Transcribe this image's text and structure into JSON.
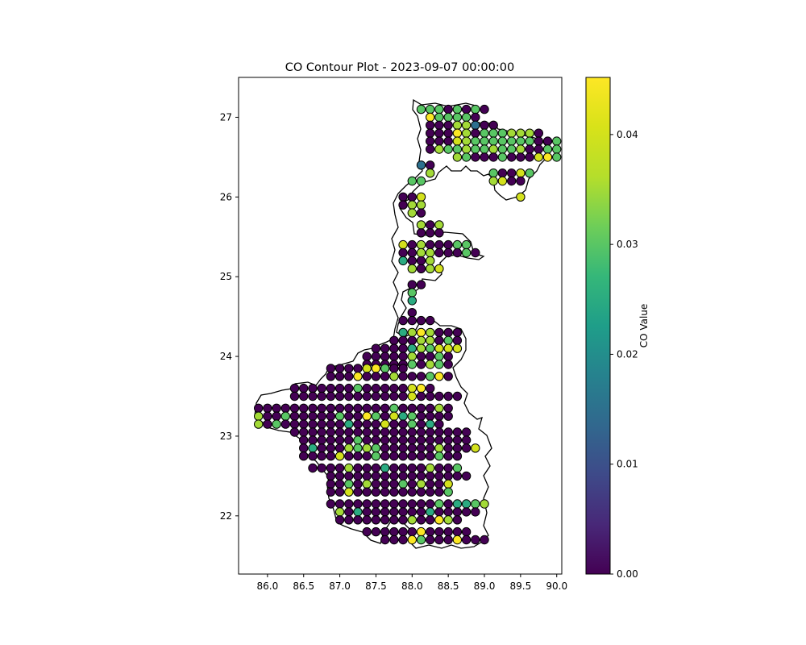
{
  "chart_data": {
    "type": "scatter",
    "title": "CO Contour Plot - 2023-09-07 00:00:00",
    "xlabel": "",
    "ylabel": "",
    "xlim": [
      85.6,
      90.07
    ],
    "ylim": [
      21.27,
      27.5
    ],
    "xticks": [
      "86.0",
      "86.5",
      "87.0",
      "87.5",
      "88.0",
      "88.5",
      "89.0",
      "89.5",
      "90.0"
    ],
    "yticks": [
      "22",
      "23",
      "24",
      "25",
      "26",
      "27"
    ],
    "grid": false,
    "colorbar": {
      "label": "CO Value",
      "colormap": "viridis",
      "range": [
        0,
        0.0452
      ],
      "ticks": [
        "0.00",
        "0.01",
        "0.02",
        "0.03",
        "0.04"
      ]
    },
    "marker_edge_color": "#000000",
    "grid_spacing": 0.125,
    "rows": [
      {
        "y": 27.1,
        "x0": 88.125,
        "v": [
          0.03,
          0.03,
          0.03,
          0,
          0.03,
          0,
          0.03,
          0
        ]
      },
      {
        "y": 27.0,
        "x0": 88.25,
        "v": [
          0.045,
          0.03,
          0.03,
          0.03,
          0.03,
          0
        ]
      },
      {
        "y": 26.9,
        "x0": 88.25,
        "v": [
          0,
          0,
          0,
          0.035,
          0.035,
          0.015,
          0,
          0
        ]
      },
      {
        "y": 26.8,
        "x0": 88.25,
        "v": [
          0,
          0,
          0,
          0.045,
          0.035,
          0,
          0.03,
          0.03,
          0.03,
          0.035,
          0.035,
          0.035,
          0
        ]
      },
      {
        "y": 26.7,
        "x0": 88.25,
        "v": [
          0,
          0,
          0,
          0.04,
          0.035,
          0.03,
          0.03,
          0.03,
          0.03,
          0.03,
          0.03,
          0.03,
          0,
          0,
          0.03
        ]
      },
      {
        "y": 26.6,
        "x0": 88.25,
        "v": [
          0,
          0.035,
          0.03,
          0.03,
          0.035,
          0.03,
          0.03,
          0.035,
          0.03,
          0.03,
          0.035,
          0,
          0,
          0.03,
          0.03
        ]
      },
      {
        "y": 26.5,
        "x0": 88.625,
        "v": [
          0.035,
          0.03,
          0,
          0,
          0,
          0.03,
          0,
          0,
          0,
          0.04,
          0.045,
          0.03
        ]
      },
      {
        "y": 26.4,
        "x0": 88.125,
        "v": [
          0.015,
          0
        ]
      },
      {
        "y": 26.3,
        "x0": 88.25,
        "v": [
          0.035
        ]
      },
      {
        "y": 26.3,
        "x0": 89.125,
        "v": [
          0.03,
          0,
          0,
          0.04,
          0.03
        ]
      },
      {
        "y": 26.2,
        "x0": 88.0,
        "v": [
          0.03,
          0.03
        ]
      },
      {
        "y": 26.2,
        "x0": 89.125,
        "v": [
          0.035,
          0.04,
          0,
          0
        ]
      },
      {
        "y": 26.0,
        "x0": 87.875,
        "v": [
          0,
          0,
          0.04
        ]
      },
      {
        "y": 26.0,
        "x0": 89.5,
        "v": [
          0.04
        ]
      },
      {
        "y": 25.9,
        "x0": 87.875,
        "v": [
          0,
          0.035,
          0.035
        ]
      },
      {
        "y": 25.8,
        "x0": 88.0,
        "v": [
          0.035,
          0
        ]
      },
      {
        "y": 25.65,
        "x0": 88.125,
        "v": [
          0.035,
          0,
          0.035
        ]
      },
      {
        "y": 25.55,
        "x0": 88.125,
        "v": [
          0,
          0,
          0
        ]
      },
      {
        "y": 25.4,
        "x0": 87.875,
        "v": [
          0.04,
          0,
          0.035,
          0,
          0,
          0,
          0.03,
          0.03
        ]
      },
      {
        "y": 25.3,
        "x0": 87.875,
        "v": [
          0,
          0,
          0.035,
          0.035,
          0,
          0,
          0,
          0.03,
          0
        ]
      },
      {
        "y": 25.2,
        "x0": 87.875,
        "v": [
          0.025,
          0,
          0,
          0.035
        ]
      },
      {
        "y": 25.1,
        "x0": 88.0,
        "v": [
          0.035,
          0,
          0.035,
          0.04
        ]
      },
      {
        "y": 24.9,
        "x0": 88.0,
        "v": [
          0,
          0
        ]
      },
      {
        "y": 24.8,
        "x0": 88.0,
        "v": [
          0.03
        ]
      },
      {
        "y": 24.7,
        "x0": 88.0,
        "v": [
          0.025
        ]
      },
      {
        "y": 24.55,
        "x0": 88.0,
        "v": [
          0
        ]
      },
      {
        "y": 24.45,
        "x0": 87.875,
        "v": [
          0,
          0,
          0,
          0
        ]
      },
      {
        "y": 24.3,
        "x0": 87.875,
        "v": [
          0.025,
          0.035,
          0.045,
          0.035,
          0,
          0,
          0
        ]
      },
      {
        "y": 24.2,
        "x0": 87.75,
        "v": [
          0,
          0,
          0,
          0.035,
          0.035,
          0,
          0.03,
          0
        ]
      },
      {
        "y": 24.1,
        "x0": 87.5,
        "v": [
          0,
          0,
          0,
          0,
          0.025,
          0.035,
          0.03,
          0.04,
          0.04,
          0.04
        ]
      },
      {
        "y": 24.0,
        "x0": 87.375,
        "v": [
          0,
          0,
          0,
          0,
          0,
          0.035,
          0,
          0,
          0.03,
          0
        ]
      },
      {
        "y": 23.9,
        "x0": 87.375,
        "v": [
          0,
          0,
          0,
          0,
          0,
          0.03,
          0,
          0.035,
          0.03,
          0
        ]
      },
      {
        "y": 23.85,
        "x0": 86.875,
        "v": [
          0,
          0,
          0,
          0,
          0.04,
          0.045,
          0.03,
          0,
          0
        ]
      },
      {
        "y": 23.75,
        "x0": 86.875,
        "v": [
          0,
          0,
          0,
          0.045,
          0,
          0,
          0,
          0.035,
          0,
          0,
          0,
          0.03,
          0.045,
          0
        ]
      },
      {
        "y": 23.6,
        "x0": 86.375,
        "v": [
          0,
          0,
          0,
          0,
          0,
          0,
          0,
          0.03,
          0,
          0,
          0,
          0,
          0,
          0.04,
          0.045,
          0
        ]
      },
      {
        "y": 23.5,
        "x0": 86.375,
        "v": [
          0,
          0,
          0,
          0,
          0,
          0,
          0,
          0,
          0,
          0,
          0,
          0,
          0,
          0.04,
          0,
          0,
          0,
          0,
          0
        ]
      },
      {
        "y": 23.35,
        "x0": 85.875,
        "v": [
          0,
          0,
          0,
          0,
          0,
          0,
          0,
          0,
          0,
          0,
          0,
          0,
          0,
          0,
          0,
          0.03,
          0,
          0,
          0,
          0,
          0.035,
          0
        ]
      },
      {
        "y": 23.25,
        "x0": 85.875,
        "v": [
          0.035,
          0,
          0,
          0.03,
          0,
          0,
          0,
          0,
          0,
          0.03,
          0,
          0,
          0.045,
          0.03,
          0,
          0.04,
          0.025,
          0.03,
          0,
          0,
          0,
          0
        ]
      },
      {
        "y": 23.15,
        "x0": 85.875,
        "v": [
          0.035,
          0,
          0.03,
          0,
          0,
          0,
          0,
          0,
          0,
          0,
          0.025,
          0,
          0,
          0,
          0.04,
          0,
          0,
          0.03,
          0,
          0.025,
          0
        ]
      },
      {
        "y": 23.05,
        "x0": 86.375,
        "v": [
          0,
          0,
          0,
          0,
          0,
          0,
          0,
          0,
          0,
          0,
          0,
          0,
          0,
          0,
          0,
          0,
          0,
          0,
          0,
          0
        ]
      },
      {
        "y": 22.95,
        "x0": 86.5,
        "v": [
          0,
          0,
          0,
          0,
          0,
          0,
          0.03,
          0,
          0,
          0,
          0,
          0,
          0,
          0,
          0,
          0,
          0,
          0,
          0
        ]
      },
      {
        "y": 22.85,
        "x0": 86.5,
        "v": [
          0,
          0.025,
          0,
          0,
          0,
          0.035,
          0.03,
          0.035,
          0.03,
          0,
          0,
          0,
          0,
          0,
          0,
          0.035,
          0,
          0,
          0,
          0.04
        ]
      },
      {
        "y": 22.75,
        "x0": 86.5,
        "v": [
          0,
          0,
          0,
          0,
          0.04,
          0,
          0,
          0,
          0.03,
          0,
          0,
          0,
          0,
          0,
          0,
          0.03,
          0,
          0
        ]
      },
      {
        "y": 22.6,
        "x0": 86.625,
        "v": [
          0,
          0,
          0,
          0,
          0.035,
          0,
          0,
          0,
          0.025,
          0,
          0,
          0,
          0,
          0.035,
          0,
          0,
          0.03
        ]
      },
      {
        "y": 22.5,
        "x0": 86.875,
        "v": [
          0,
          0,
          0,
          0,
          0,
          0,
          0,
          0,
          0,
          0,
          0,
          0,
          0,
          0,
          0,
          0
        ]
      },
      {
        "y": 22.4,
        "x0": 86.875,
        "v": [
          0,
          0,
          0.03,
          0,
          0.035,
          0,
          0,
          0,
          0.03,
          0,
          0.035,
          0,
          0,
          0.04
        ]
      },
      {
        "y": 22.3,
        "x0": 86.875,
        "v": [
          0,
          0,
          0.04,
          0,
          0,
          0,
          0,
          0,
          0,
          0,
          0,
          0,
          0,
          0.03
        ]
      },
      {
        "y": 22.15,
        "x0": 86.875,
        "v": [
          0,
          0,
          0,
          0,
          0,
          0,
          0,
          0,
          0,
          0,
          0,
          0,
          0.03,
          0,
          0.025,
          0.025,
          0.03,
          0.035
        ]
      },
      {
        "y": 22.05,
        "x0": 87.0,
        "v": [
          0.035,
          0,
          0.025,
          0,
          0,
          0,
          0,
          0,
          0,
          0,
          0.025,
          0,
          0,
          0,
          0,
          0
        ]
      },
      {
        "y": 21.95,
        "x0": 87.0,
        "v": [
          0,
          0,
          0,
          0,
          0,
          0,
          0,
          0,
          0.035,
          0,
          0,
          0.045,
          0.035,
          0
        ]
      },
      {
        "y": 21.8,
        "x0": 87.375,
        "v": [
          0,
          0,
          0,
          0,
          0,
          0,
          0.045,
          0,
          0,
          0,
          0,
          0
        ]
      },
      {
        "y": 21.7,
        "x0": 87.625,
        "v": [
          0,
          0,
          0,
          0.045,
          0.03,
          0,
          0,
          0,
          0.045,
          0,
          0,
          0
        ]
      }
    ]
  }
}
